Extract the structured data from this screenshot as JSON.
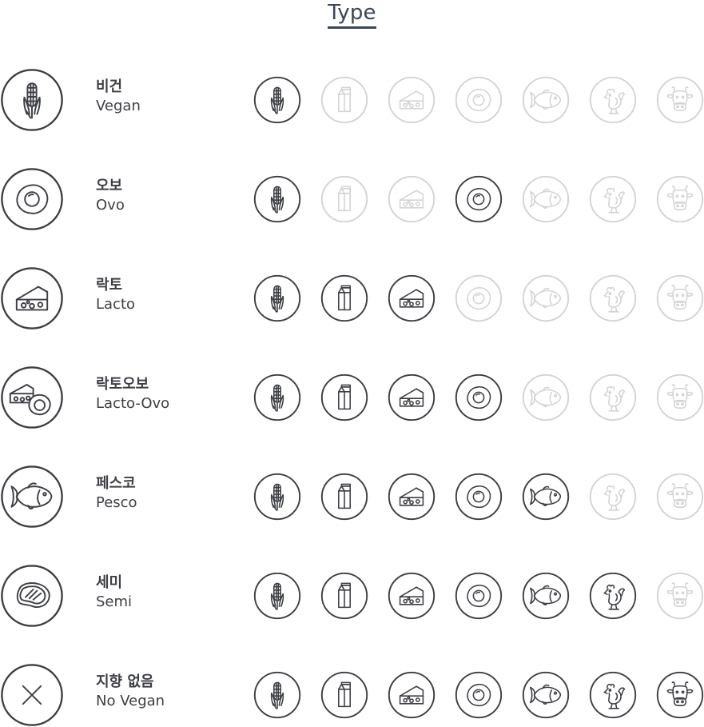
{
  "title": "Type",
  "food_icons": [
    "corn-icon",
    "milk-carton-icon",
    "cheese-icon",
    "egg-icon",
    "fish-icon",
    "chicken-icon",
    "cow-icon"
  ],
  "rows": [
    {
      "ko": "비건",
      "en": "Vegan",
      "icon": "corn-icon",
      "active": [
        true,
        false,
        false,
        false,
        false,
        false,
        false
      ]
    },
    {
      "ko": "오보",
      "en": "Ovo",
      "icon": "egg-icon",
      "active": [
        true,
        false,
        false,
        true,
        false,
        false,
        false
      ]
    },
    {
      "ko": "락토",
      "en": "Lacto",
      "icon": "cheese-icon",
      "active": [
        true,
        true,
        true,
        false,
        false,
        false,
        false
      ]
    },
    {
      "ko": "락토오보",
      "en": "Lacto-Ovo",
      "icon": "cheese-egg-icon",
      "active": [
        true,
        true,
        true,
        true,
        false,
        false,
        false
      ]
    },
    {
      "ko": "페스코",
      "en": "Pesco",
      "icon": "fish-icon",
      "active": [
        true,
        true,
        true,
        true,
        true,
        false,
        false
      ]
    },
    {
      "ko": "세미",
      "en": "Semi",
      "icon": "steak-icon",
      "active": [
        true,
        true,
        true,
        true,
        true,
        true,
        false
      ]
    },
    {
      "ko": "지향 없음",
      "en": "No Vegan",
      "icon": "x-icon",
      "active": [
        true,
        true,
        true,
        true,
        true,
        true,
        true
      ]
    }
  ],
  "colors": {
    "active": "#3d3f44",
    "inactive": "#d4d4d4",
    "title": "#3a4656"
  }
}
